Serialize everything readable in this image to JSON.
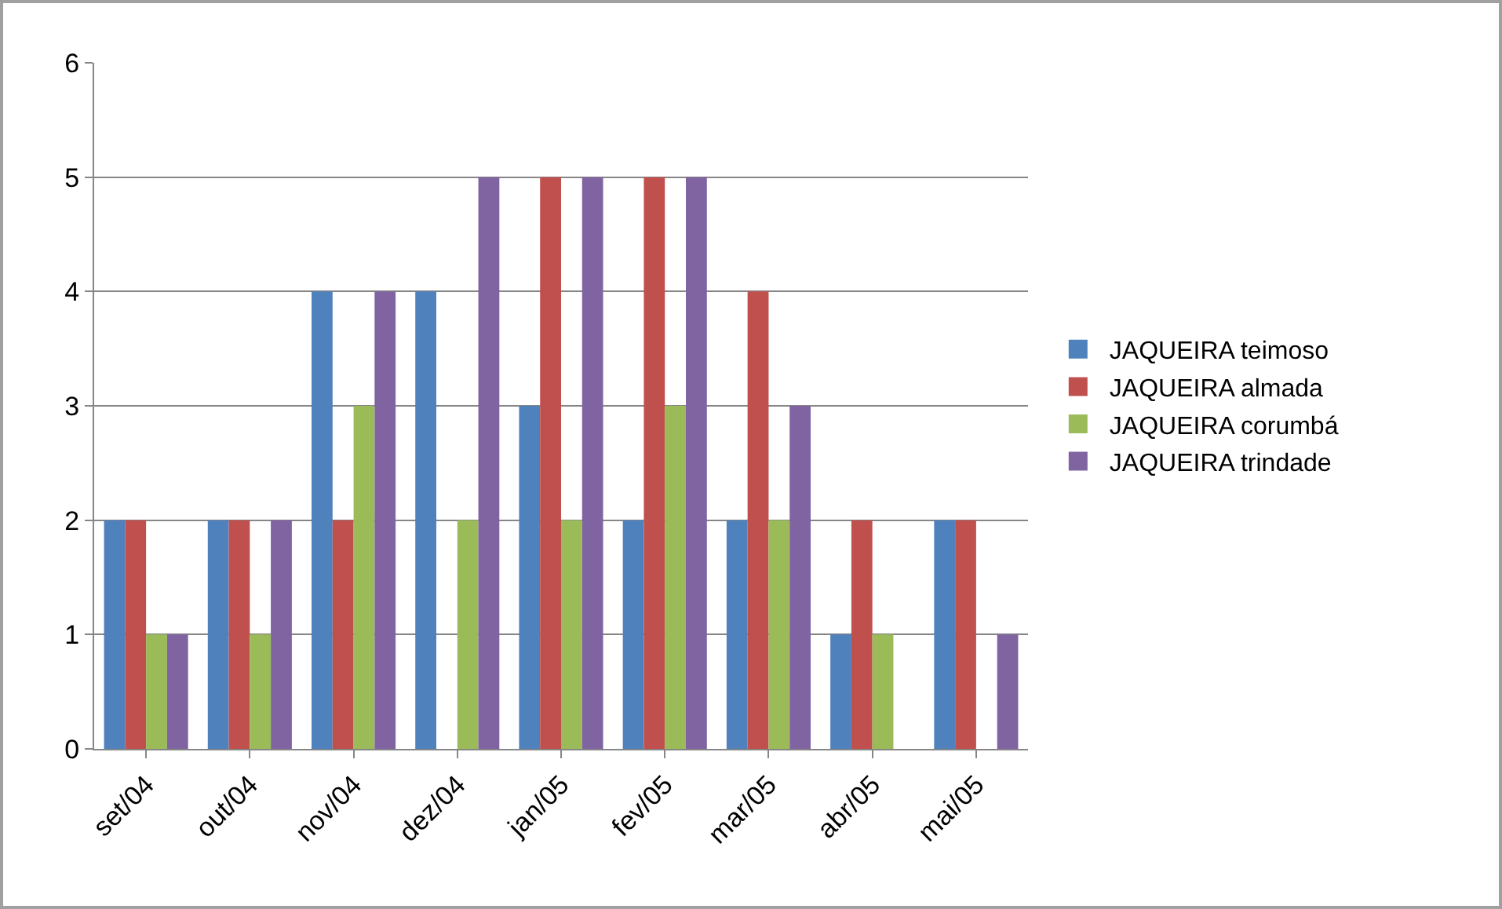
{
  "chart_data": {
    "type": "bar",
    "categories": [
      "set/04",
      "out/04",
      "nov/04",
      "dez/04",
      "jan/05",
      "fev/05",
      "mar/05",
      "abr/05",
      "mai/05"
    ],
    "series": [
      {
        "name": "JAQUEIRA teimoso",
        "color": "#4f81bd",
        "values": [
          2,
          2,
          4,
          4,
          3,
          2,
          2,
          1,
          2
        ]
      },
      {
        "name": "JAQUEIRA almada",
        "color": "#c0504d",
        "values": [
          2,
          2,
          2,
          0,
          5,
          5,
          4,
          2,
          2
        ]
      },
      {
        "name": "JAQUEIRA corumbá",
        "color": "#9bbb59",
        "values": [
          1,
          1,
          3,
          2,
          2,
          3,
          2,
          1,
          0
        ]
      },
      {
        "name": "JAQUEIRA trindade",
        "color": "#8064a2",
        "values": [
          1,
          2,
          4,
          5,
          5,
          5,
          3,
          0,
          1
        ]
      }
    ],
    "ylim": [
      0,
      6
    ],
    "yticks": [
      0,
      1,
      2,
      3,
      4,
      5,
      6
    ],
    "grid": "y",
    "legend": "right"
  }
}
